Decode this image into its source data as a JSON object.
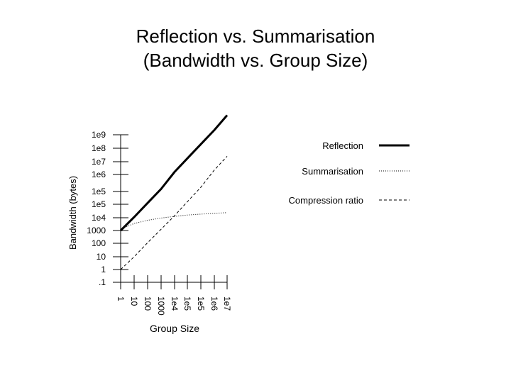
{
  "chart_data": {
    "type": "line",
    "title": [
      "Reflection vs. Summarisation",
      "(Bandwidth vs. Group Size)"
    ],
    "xlabel": "Group Size",
    "ylabel": "Bandwidth (bytes)",
    "x_scale": "log",
    "y_scale": "log",
    "x_ticks": [
      "1",
      "10",
      "100",
      "1000",
      "1e4",
      "1e5",
      "1e5",
      "1e6",
      "1e7"
    ],
    "y_ticks": [
      ".1",
      "1",
      "10",
      "100",
      "1000",
      "1e4",
      "1e5",
      "1e5",
      "1e6",
      "1e7",
      "1e8",
      "1e9"
    ],
    "grid": false,
    "legend_position": "right",
    "series": [
      {
        "name": "Reflection",
        "color": "#000000",
        "style": "solid-thick",
        "x_index": [
          0,
          1,
          2,
          3,
          4,
          5,
          6,
          7,
          8
        ],
        "y_index": [
          4.0,
          5.05,
          6.1,
          7.15,
          8.2,
          9.25,
          10.3,
          11.35,
          12.45
        ]
      },
      {
        "name": "Summarisation",
        "color": "#000000",
        "style": "dotted",
        "x_index": [
          0,
          1,
          2,
          3,
          4,
          5,
          6,
          7,
          8
        ],
        "y_index": [
          4.1,
          4.55,
          4.8,
          4.98,
          5.1,
          5.2,
          5.27,
          5.33,
          5.38
        ]
      },
      {
        "name": "Compression ratio",
        "color": "#000000",
        "style": "dashed",
        "x_index": [
          0,
          1,
          2,
          3,
          4,
          5,
          6,
          7,
          8
        ],
        "y_index": [
          1.0,
          2.0,
          3.05,
          4.1,
          5.15,
          6.2,
          7.25,
          8.35,
          9.4
        ]
      }
    ]
  }
}
